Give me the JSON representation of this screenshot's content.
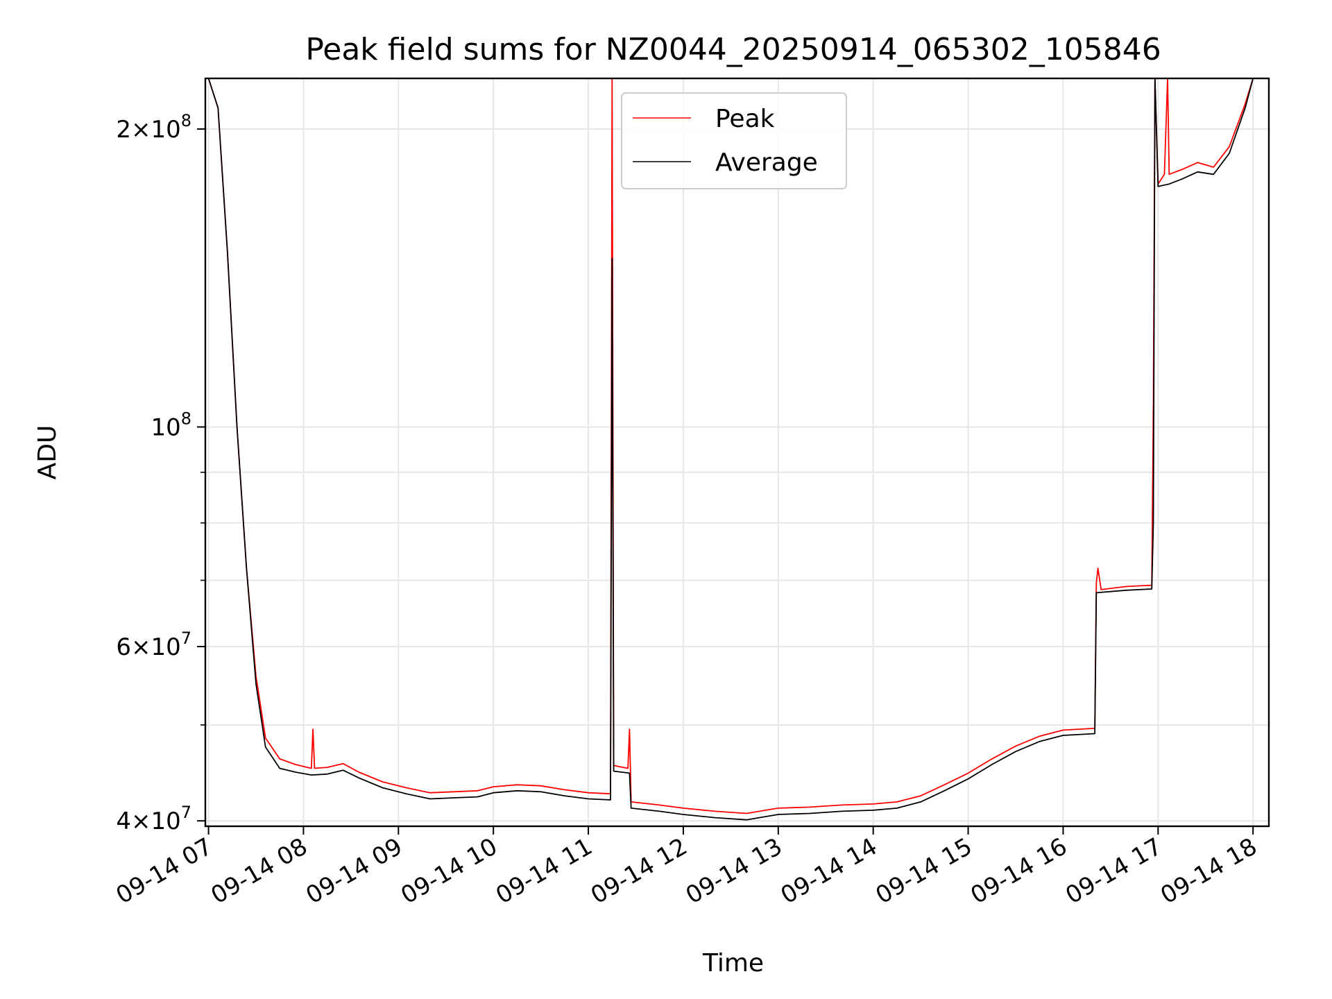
{
  "chart_data": {
    "type": "line",
    "title": "Peak field sums for NZ0044_20250914_065302_105846",
    "xlabel": "Time",
    "ylabel": "ADU",
    "y_scale": "log",
    "ylim": [
      39500000,
      225000000
    ],
    "xlim": [
      "2025-09-14T06:58",
      "2025-09-14T18:10"
    ],
    "grid": true,
    "legend_position": "upper center",
    "colors": {
      "Peak": "#ff0000",
      "Average": "#000000"
    },
    "x_ticks": [
      {
        "time": "2025-09-14T07:00",
        "label": "09-14 07"
      },
      {
        "time": "2025-09-14T08:00",
        "label": "09-14 08"
      },
      {
        "time": "2025-09-14T09:00",
        "label": "09-14 09"
      },
      {
        "time": "2025-09-14T10:00",
        "label": "09-14 10"
      },
      {
        "time": "2025-09-14T11:00",
        "label": "09-14 11"
      },
      {
        "time": "2025-09-14T12:00",
        "label": "09-14 12"
      },
      {
        "time": "2025-09-14T13:00",
        "label": "09-14 13"
      },
      {
        "time": "2025-09-14T14:00",
        "label": "09-14 14"
      },
      {
        "time": "2025-09-14T15:00",
        "label": "09-14 15"
      },
      {
        "time": "2025-09-14T16:00",
        "label": "09-14 16"
      },
      {
        "time": "2025-09-14T17:00",
        "label": "09-14 17"
      },
      {
        "time": "2025-09-14T18:00",
        "label": "09-14 18"
      }
    ],
    "y_ticks": [
      {
        "value": 40000000,
        "mantissa": "4",
        "exponent": "7"
      },
      {
        "value": 60000000,
        "mantissa": "6",
        "exponent": "7"
      },
      {
        "value": 100000000,
        "mantissa": "",
        "exponent": "8"
      },
      {
        "value": 200000000,
        "mantissa": "2",
        "exponent": "8"
      }
    ],
    "y_minor_ticks": [
      50000000,
      70000000,
      80000000,
      90000000
    ],
    "series": [
      {
        "name": "Peak",
        "points": [
          [
            "2025-09-14T07:00",
            225000000
          ],
          [
            "2025-09-14T07:06",
            210000000
          ],
          [
            "2025-09-14T07:12",
            150000000
          ],
          [
            "2025-09-14T07:18",
            100000000
          ],
          [
            "2025-09-14T07:24",
            72000000
          ],
          [
            "2025-09-14T07:30",
            56000000
          ],
          [
            "2025-09-14T07:36",
            48500000
          ],
          [
            "2025-09-14T07:45",
            46200000
          ],
          [
            "2025-09-14T07:55",
            45600000
          ],
          [
            "2025-09-14T08:05",
            45200000
          ],
          [
            "2025-09-14T08:06",
            49500000
          ],
          [
            "2025-09-14T08:07",
            45200000
          ],
          [
            "2025-09-14T08:15",
            45300000
          ],
          [
            "2025-09-14T08:25",
            45700000
          ],
          [
            "2025-09-14T08:35",
            44800000
          ],
          [
            "2025-09-14T08:50",
            43800000
          ],
          [
            "2025-09-14T09:05",
            43200000
          ],
          [
            "2025-09-14T09:20",
            42700000
          ],
          [
            "2025-09-14T09:35",
            42800000
          ],
          [
            "2025-09-14T09:50",
            42900000
          ],
          [
            "2025-09-14T10:00",
            43300000
          ],
          [
            "2025-09-14T10:15",
            43500000
          ],
          [
            "2025-09-14T10:30",
            43400000
          ],
          [
            "2025-09-14T10:45",
            43000000
          ],
          [
            "2025-09-14T11:00",
            42700000
          ],
          [
            "2025-09-14T11:14",
            42600000
          ],
          [
            "2025-09-14T11:15",
            225000000
          ],
          [
            "2025-09-14T11:16",
            45500000
          ],
          [
            "2025-09-14T11:25",
            45200000
          ],
          [
            "2025-09-14T11:26",
            49500000
          ],
          [
            "2025-09-14T11:27",
            41800000
          ],
          [
            "2025-09-14T11:45",
            41500000
          ],
          [
            "2025-09-14T12:00",
            41200000
          ],
          [
            "2025-09-14T12:20",
            40900000
          ],
          [
            "2025-09-14T12:40",
            40700000
          ],
          [
            "2025-09-14T13:00",
            41200000
          ],
          [
            "2025-09-14T13:20",
            41300000
          ],
          [
            "2025-09-14T13:40",
            41500000
          ],
          [
            "2025-09-14T14:00",
            41600000
          ],
          [
            "2025-09-14T14:15",
            41800000
          ],
          [
            "2025-09-14T14:30",
            42400000
          ],
          [
            "2025-09-14T14:45",
            43500000
          ],
          [
            "2025-09-14T15:00",
            44700000
          ],
          [
            "2025-09-14T15:15",
            46200000
          ],
          [
            "2025-09-14T15:30",
            47600000
          ],
          [
            "2025-09-14T15:45",
            48700000
          ],
          [
            "2025-09-14T16:00",
            49400000
          ],
          [
            "2025-09-14T16:20",
            49600000
          ],
          [
            "2025-09-14T16:21",
            69500000
          ],
          [
            "2025-09-14T16:22",
            72000000
          ],
          [
            "2025-09-14T16:24",
            68500000
          ],
          [
            "2025-09-14T16:40",
            69000000
          ],
          [
            "2025-09-14T16:56",
            69200000
          ],
          [
            "2025-09-14T16:57",
            105000000
          ],
          [
            "2025-09-14T16:58",
            225000000
          ],
          [
            "2025-09-14T17:00",
            176000000
          ],
          [
            "2025-09-14T17:04",
            180000000
          ],
          [
            "2025-09-14T17:06",
            225000000
          ],
          [
            "2025-09-14T17:07",
            180000000
          ],
          [
            "2025-09-14T17:15",
            182000000
          ],
          [
            "2025-09-14T17:25",
            185000000
          ],
          [
            "2025-09-14T17:35",
            183000000
          ],
          [
            "2025-09-14T17:45",
            192000000
          ],
          [
            "2025-09-14T17:55",
            212000000
          ],
          [
            "2025-09-14T18:00",
            225000000
          ]
        ]
      },
      {
        "name": "Average",
        "points": [
          [
            "2025-09-14T07:00",
            225000000
          ],
          [
            "2025-09-14T07:06",
            210000000
          ],
          [
            "2025-09-14T07:12",
            150000000
          ],
          [
            "2025-09-14T07:18",
            100000000
          ],
          [
            "2025-09-14T07:24",
            72000000
          ],
          [
            "2025-09-14T07:30",
            55000000
          ],
          [
            "2025-09-14T07:36",
            47500000
          ],
          [
            "2025-09-14T07:45",
            45200000
          ],
          [
            "2025-09-14T07:55",
            44800000
          ],
          [
            "2025-09-14T08:05",
            44500000
          ],
          [
            "2025-09-14T08:15",
            44600000
          ],
          [
            "2025-09-14T08:25",
            45000000
          ],
          [
            "2025-09-14T08:35",
            44200000
          ],
          [
            "2025-09-14T08:50",
            43200000
          ],
          [
            "2025-09-14T09:05",
            42600000
          ],
          [
            "2025-09-14T09:20",
            42100000
          ],
          [
            "2025-09-14T09:35",
            42200000
          ],
          [
            "2025-09-14T09:50",
            42300000
          ],
          [
            "2025-09-14T10:00",
            42700000
          ],
          [
            "2025-09-14T10:15",
            42900000
          ],
          [
            "2025-09-14T10:30",
            42800000
          ],
          [
            "2025-09-14T10:45",
            42400000
          ],
          [
            "2025-09-14T11:00",
            42100000
          ],
          [
            "2025-09-14T11:14",
            42000000
          ],
          [
            "2025-09-14T11:15",
            148000000
          ],
          [
            "2025-09-14T11:16",
            44900000
          ],
          [
            "2025-09-14T11:26",
            44700000
          ],
          [
            "2025-09-14T11:27",
            41200000
          ],
          [
            "2025-09-14T11:45",
            40900000
          ],
          [
            "2025-09-14T12:00",
            40600000
          ],
          [
            "2025-09-14T12:20",
            40300000
          ],
          [
            "2025-09-14T12:40",
            40100000
          ],
          [
            "2025-09-14T13:00",
            40600000
          ],
          [
            "2025-09-14T13:20",
            40700000
          ],
          [
            "2025-09-14T13:40",
            40900000
          ],
          [
            "2025-09-14T14:00",
            41000000
          ],
          [
            "2025-09-14T14:15",
            41200000
          ],
          [
            "2025-09-14T14:30",
            41800000
          ],
          [
            "2025-09-14T14:45",
            42900000
          ],
          [
            "2025-09-14T15:00",
            44100000
          ],
          [
            "2025-09-14T15:15",
            45600000
          ],
          [
            "2025-09-14T15:30",
            47000000
          ],
          [
            "2025-09-14T15:45",
            48100000
          ],
          [
            "2025-09-14T16:00",
            48800000
          ],
          [
            "2025-09-14T16:20",
            49000000
          ],
          [
            "2025-09-14T16:21",
            68000000
          ],
          [
            "2025-09-14T16:40",
            68400000
          ],
          [
            "2025-09-14T16:56",
            68600000
          ],
          [
            "2025-09-14T16:57",
            80000000
          ],
          [
            "2025-09-14T16:58",
            225000000
          ],
          [
            "2025-09-14T17:00",
            175000000
          ],
          [
            "2025-09-14T17:07",
            176000000
          ],
          [
            "2025-09-14T17:15",
            178000000
          ],
          [
            "2025-09-14T17:25",
            181000000
          ],
          [
            "2025-09-14T17:35",
            180000000
          ],
          [
            "2025-09-14T17:45",
            189000000
          ],
          [
            "2025-09-14T17:55",
            210000000
          ],
          [
            "2025-09-14T18:00",
            225000000
          ]
        ]
      }
    ]
  }
}
